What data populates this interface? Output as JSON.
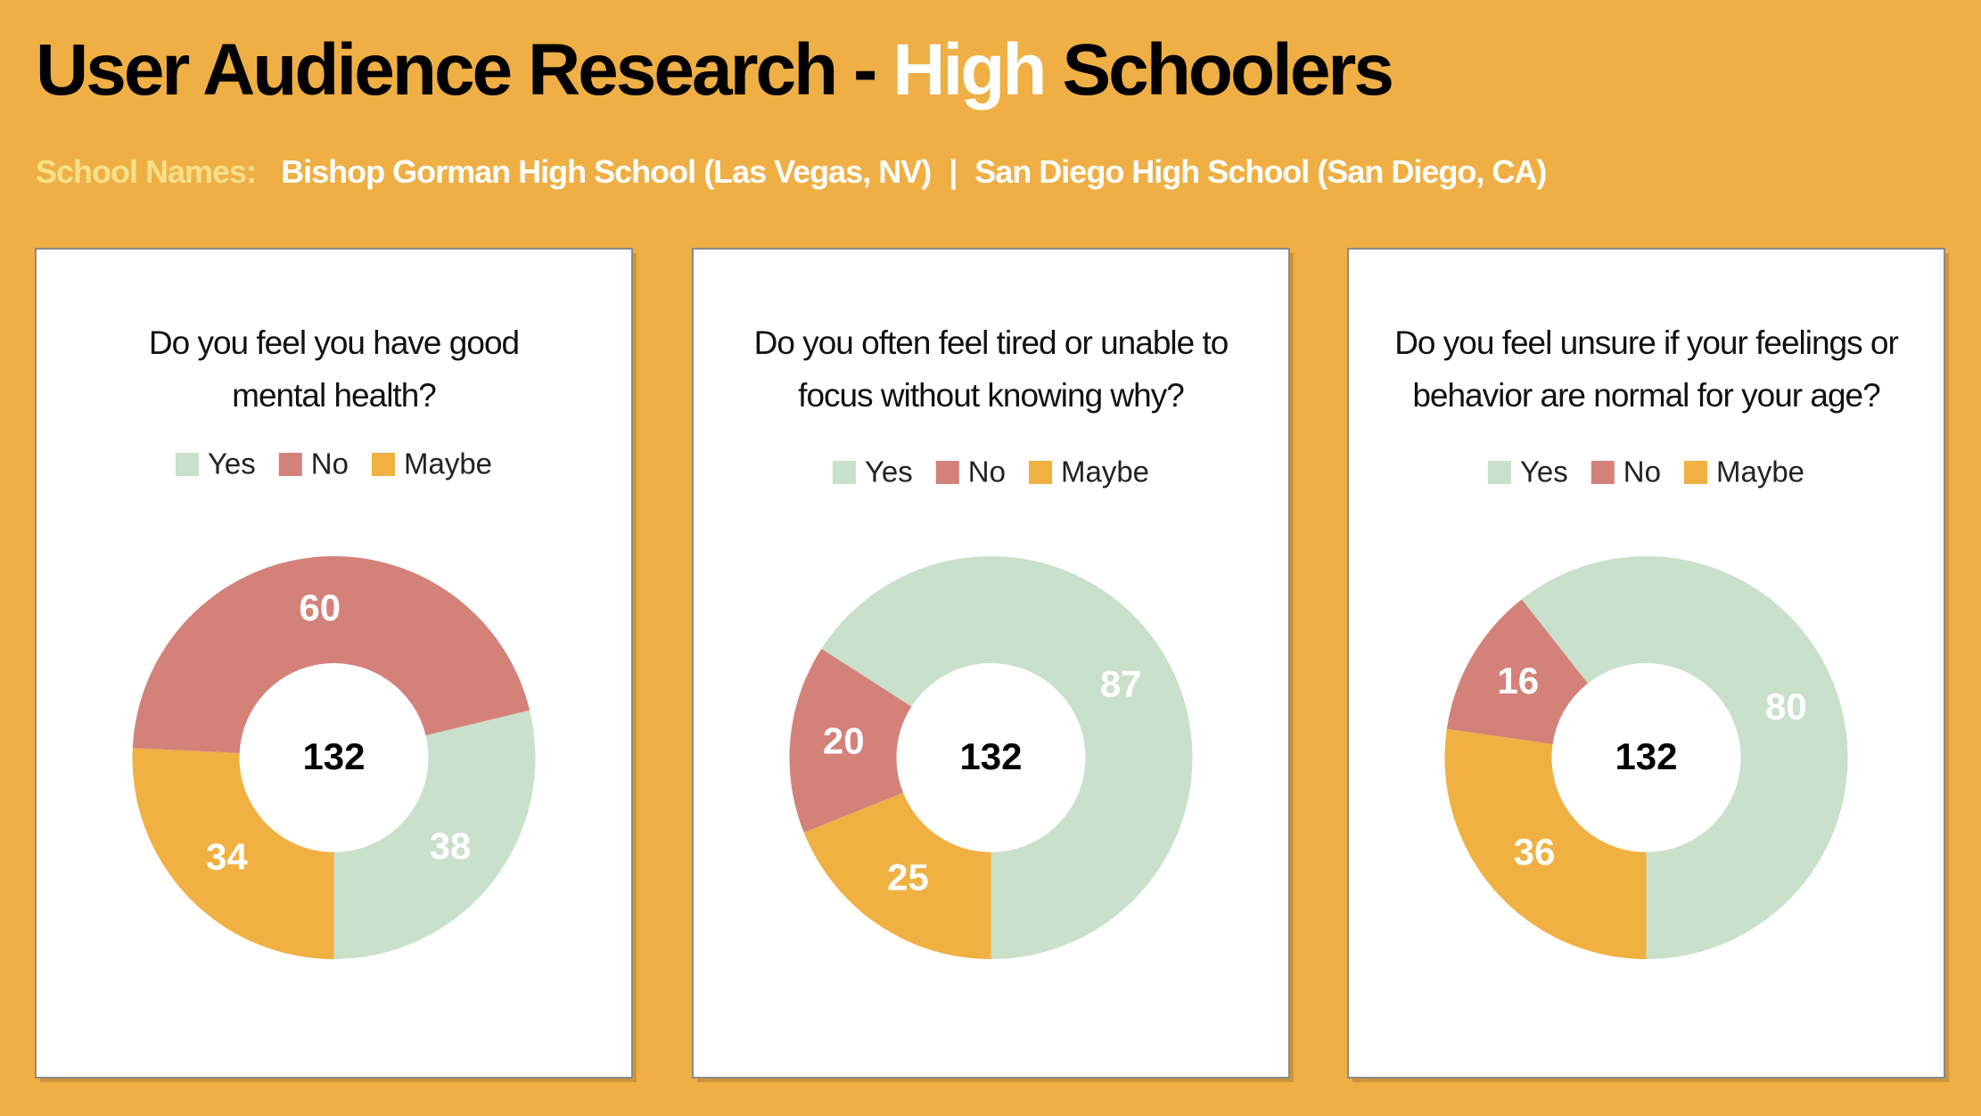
{
  "header": {
    "title": [
      "User Audience Research -",
      "High",
      "Schoolers"
    ],
    "subtitle_label": "School Names:",
    "schools": [
      "Bishop Gorman High School (Las Vegas, NV)",
      "San Diego High School (San Diego, CA)"
    ],
    "separator": "|"
  },
  "chart_data": [
    {
      "type": "donut",
      "title": [
        "Do you feel you have good",
        "mental health?"
      ],
      "categories": [
        "Yes",
        "No",
        "Maybe"
      ],
      "values": [
        38,
        60,
        34
      ],
      "colors": [
        "#c9e0cb",
        "#d4817a",
        "#f0b042"
      ],
      "center_label": 132
    },
    {
      "type": "donut",
      "title": [
        "Do you often feel tired or unable to",
        "focus without knowing why?"
      ],
      "categories": [
        "Yes",
        "No",
        "Maybe"
      ],
      "values": [
        87,
        20,
        25
      ],
      "colors": [
        "#c9e0cb",
        "#d4817a",
        "#f0b042"
      ],
      "center_label": 132
    },
    {
      "type": "donut",
      "title": [
        "Do you feel unsure if your feelings or",
        "behavior are normal for your age?"
      ],
      "categories": [
        "Yes",
        "No",
        "Maybe"
      ],
      "values": [
        80,
        16,
        36
      ],
      "colors": [
        "#c9e0cb",
        "#d4817a",
        "#f0b042"
      ],
      "center_label": 132
    }
  ]
}
